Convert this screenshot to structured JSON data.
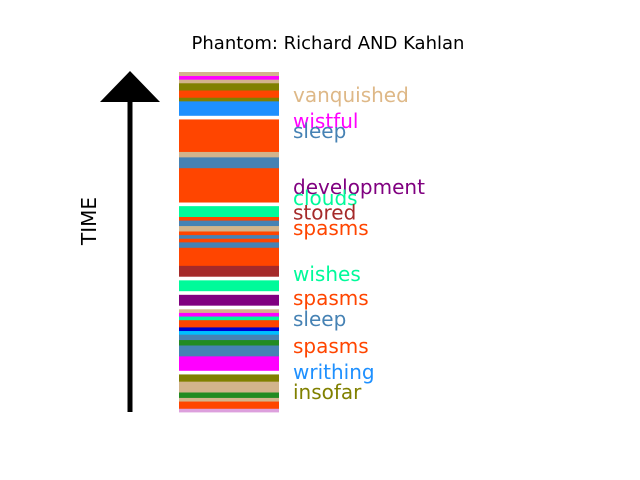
{
  "chart_data": {
    "type": "timeline-strip",
    "title": "Phantom: Richard AND Kahlan",
    "ylabel": "TIME",
    "bands": [
      {
        "color": "#dda0dd",
        "name": "",
        "value": 0.99
      },
      {
        "color": "#ff4500",
        "name": "",
        "value": 1.97
      },
      {
        "color": "#d2b48c",
        "name": "",
        "value": 0.99
      },
      {
        "color": "#228b22",
        "name": "",
        "value": 1.48
      },
      {
        "color": "#d2b48c",
        "name": "",
        "value": 2.96
      },
      {
        "color": "#808000",
        "name": "",
        "value": 1.97
      },
      {
        "color": "#ffffff",
        "name": "",
        "value": 0.99
      },
      {
        "color": "#ff00ff",
        "name": "",
        "value": 3.94
      },
      {
        "color": "#4682b4",
        "name": "",
        "value": 2.96
      },
      {
        "color": "#228b22",
        "name": "",
        "value": 1.48
      },
      {
        "color": "#4682b4",
        "name": "",
        "value": 1.48
      },
      {
        "color": "#00bfff",
        "name": "",
        "value": 0.99
      },
      {
        "color": "#0000cd",
        "name": "",
        "value": 0.99
      },
      {
        "color": "#ff4500",
        "name": "",
        "value": 1.97
      },
      {
        "color": "#00fa9a",
        "name": "",
        "value": 0.99
      },
      {
        "color": "#ff00ff",
        "name": "",
        "value": 0.99
      },
      {
        "color": "#d2b48c",
        "name": "",
        "value": 0.99
      },
      {
        "color": "#ffffff",
        "name": "",
        "value": 0.99
      },
      {
        "color": "#800080",
        "name": "",
        "value": 2.96
      },
      {
        "color": "#ffffff",
        "name": "",
        "value": 0.99
      },
      {
        "color": "#00fa9a",
        "name": "",
        "value": 2.96
      },
      {
        "color": "#ffffff",
        "name": "",
        "value": 0.99
      },
      {
        "color": "#a52a2a",
        "name": "",
        "value": 2.96
      },
      {
        "color": "#ff4500",
        "name": "",
        "value": 4.93
      },
      {
        "color": "#4682b4",
        "name": "",
        "value": 1.48
      },
      {
        "color": "#ff4500",
        "name": "",
        "value": 0.99
      },
      {
        "color": "#4682b4",
        "name": "",
        "value": 0.99
      },
      {
        "color": "#ff4500",
        "name": "",
        "value": 0.99
      },
      {
        "color": "#d2b48c",
        "name": "",
        "value": 1.48
      },
      {
        "color": "#4682b4",
        "name": "",
        "value": 1.48
      },
      {
        "color": "#ff4500",
        "name": "",
        "value": 0.99
      },
      {
        "color": "#00fa9a",
        "name": "",
        "value": 2.96
      },
      {
        "color": "#ffffff",
        "name": "",
        "value": 0.99
      },
      {
        "color": "#ff4500",
        "name": "",
        "value": 9.36
      },
      {
        "color": "#4682b4",
        "name": "",
        "value": 2.96
      },
      {
        "color": "#d2b48c",
        "name": "",
        "value": 1.48
      },
      {
        "color": "#ff4500",
        "name": "",
        "value": 8.87
      },
      {
        "color": "#ffffff",
        "name": "",
        "value": 0.99
      },
      {
        "color": "#1e90ff",
        "name": "",
        "value": 3.94
      },
      {
        "color": "#808000",
        "name": "",
        "value": 0.99
      },
      {
        "color": "#ff4500",
        "name": "",
        "value": 1.97
      },
      {
        "color": "#808000",
        "name": "",
        "value": 1.97
      },
      {
        "color": "#d2b48c",
        "name": "",
        "value": 0.99
      },
      {
        "color": "#ff00ff",
        "name": "",
        "value": 0.99
      },
      {
        "color": "#d2b48c",
        "name": "",
        "value": 0.99
      }
    ],
    "labels": [
      {
        "text": "vanquished",
        "color": "#deb887",
        "value": 93.3
      },
      {
        "text": "wistful",
        "color": "#ff00ff",
        "value": 85.6
      },
      {
        "text": "sleep",
        "color": "#4682b4",
        "value": 82.6
      },
      {
        "text": "development",
        "color": "#800080",
        "value": 66.2
      },
      {
        "text": "clouds",
        "color": "#00fa9a",
        "value": 63.0
      },
      {
        "text": "stored",
        "color": "#a52a2a",
        "value": 58.7
      },
      {
        "text": "spasms",
        "color": "#ff4500",
        "value": 54.1
      },
      {
        "text": "wishes",
        "color": "#00fa9a",
        "value": 40.6
      },
      {
        "text": "spasms",
        "color": "#ff4500",
        "value": 33.6
      },
      {
        "text": "sleep",
        "color": "#4682b4",
        "value": 27.4
      },
      {
        "text": "spasms",
        "color": "#ff4500",
        "value": 19.4
      },
      {
        "text": "writhing",
        "color": "#1e90ff",
        "value": 11.7
      },
      {
        "text": "insofar",
        "color": "#808000",
        "value": 5.9
      }
    ]
  }
}
